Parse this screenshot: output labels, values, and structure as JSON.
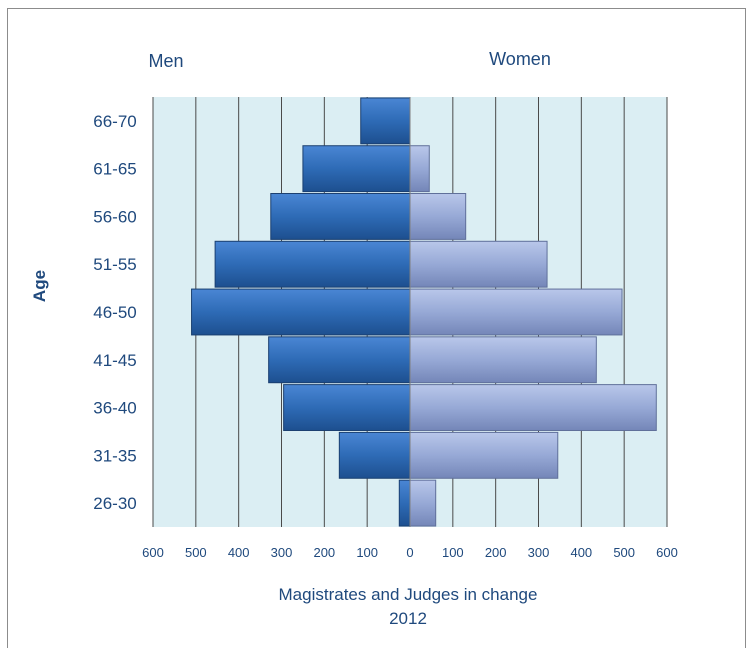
{
  "chart_data": {
    "type": "bar",
    "orientation": "horizontal",
    "layout": "population-pyramid",
    "categories": [
      "66-70",
      "61-65",
      "56-60",
      "51-55",
      "46-50",
      "41-45",
      "36-40",
      "31-35",
      "26-30"
    ],
    "series": [
      {
        "name": "Men",
        "side": "left",
        "values": [
          115,
          250,
          325,
          455,
          510,
          330,
          295,
          165,
          25
        ]
      },
      {
        "name": "Women",
        "side": "right",
        "values": [
          0,
          45,
          130,
          320,
          495,
          435,
          575,
          345,
          60
        ]
      }
    ],
    "xlabel": "Magistrates and Judges in change",
    "xlabel_line2": "2012",
    "ylabel": "Age",
    "xlim": [
      -600,
      600
    ],
    "xticks": [
      "600",
      "500",
      "400",
      "300",
      "200",
      "100",
      "0",
      "100",
      "200",
      "300",
      "400",
      "500",
      "600"
    ],
    "grid": true,
    "colors": {
      "men": "#2e6bb6",
      "women": "#97a9d6",
      "plot_bg": "#dbeef3",
      "grid": "#000000",
      "text": "#1f497d"
    }
  }
}
